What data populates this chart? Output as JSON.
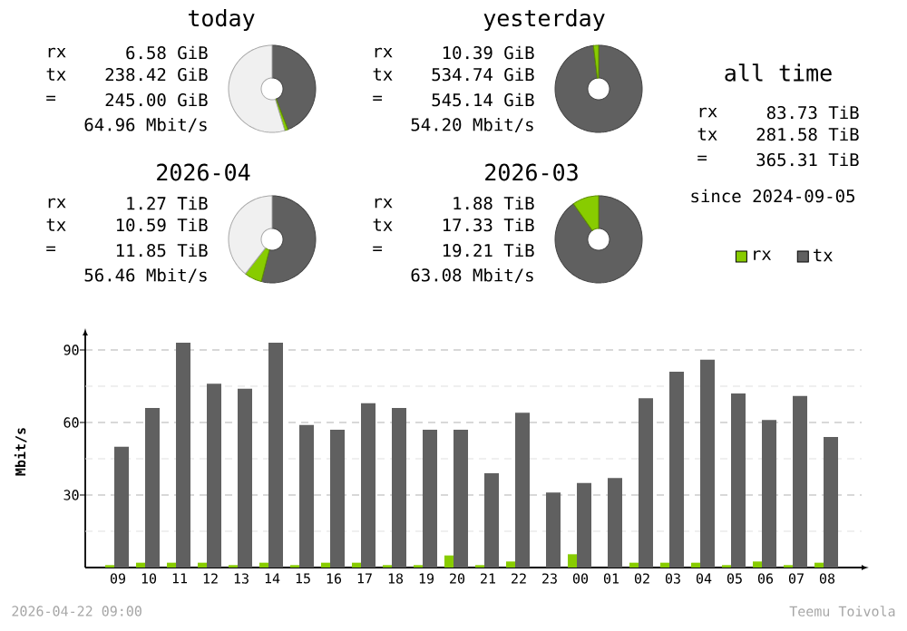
{
  "chart_data": [
    {
      "type": "donut",
      "title": "today",
      "categories": [
        null,
        null,
        null
      ],
      "values": [
        44.1,
        1.2,
        54.7
      ],
      "colors": [
        "#606060",
        "#88cc00",
        "#f0f0f0"
      ],
      "annotations": [
        "rx",
        "6.58 GiB",
        "tx",
        "238.42 GiB",
        "=",
        "245.00 GiB",
        "64.96 Mbit/s"
      ]
    },
    {
      "type": "donut",
      "title": "yesterday",
      "categories": [
        null,
        null
      ],
      "values": [
        98.1,
        1.9
      ],
      "colors": [
        "#606060",
        "#88cc00"
      ],
      "annotations": [
        "rx",
        "10.39 GiB",
        "tx",
        "534.74 GiB",
        "=",
        "545.14 GiB",
        "54.20 Mbit/s"
      ]
    },
    {
      "type": "other",
      "title": "all time",
      "annotations": [
        "rx",
        "83.73 TiB",
        "tx",
        "281.58 TiB",
        "=",
        "365.31 TiB",
        "since 2024-09-05"
      ]
    },
    {
      "type": "donut",
      "title": "2026-04",
      "categories": [
        null,
        null,
        null
      ],
      "values": [
        54.0,
        6.5,
        39.5
      ],
      "colors": [
        "#606060",
        "#88cc00",
        "#f0f0f0"
      ],
      "annotations": [
        "rx",
        "1.27 TiB",
        "tx",
        "10.59 TiB",
        "=",
        "11.85 TiB",
        "56.46 Mbit/s"
      ]
    },
    {
      "type": "donut",
      "title": "2026-03",
      "categories": [
        null,
        null
      ],
      "values": [
        90.2,
        9.8
      ],
      "colors": [
        "#606060",
        "#88cc00"
      ],
      "annotations": [
        "rx",
        "1.88 TiB",
        "tx",
        "17.33 TiB",
        "=",
        "19.21 TiB",
        "63.08 Mbit/s"
      ]
    },
    {
      "type": "bar",
      "ylabel": "Mbit/s",
      "categories": [
        "09",
        "10",
        "11",
        "12",
        "13",
        "14",
        "15",
        "16",
        "17",
        "18",
        "19",
        "20",
        "21",
        "22",
        "23",
        "00",
        "01",
        "02",
        "03",
        "04",
        "05",
        "06",
        "07",
        "08"
      ],
      "series": [
        {
          "name": "rx",
          "color": "#88cc00",
          "values": [
            1,
            2,
            2,
            2,
            1,
            2,
            1,
            2,
            2,
            1,
            1,
            5,
            1,
            2.5,
            0,
            5.5,
            0,
            2,
            2,
            2,
            1,
            2.5,
            1,
            2
          ]
        },
        {
          "name": "tx",
          "color": "#606060",
          "values": [
            50,
            66,
            93,
            76,
            74,
            93,
            59,
            57,
            68,
            66,
            57,
            57,
            39,
            64,
            31,
            35,
            37,
            70,
            81,
            86,
            72,
            61,
            71,
            54
          ]
        }
      ],
      "ylim": [
        0,
        96
      ],
      "yticks": [
        {
          "value": 15,
          "label": null
        },
        30,
        {
          "value": 45,
          "label": null
        },
        60,
        {
          "value": 75,
          "label": null
        },
        90
      ],
      "grid": "y",
      "legend": "top right",
      "annotations": [
        "2026-04-22 09:00",
        "Teemu Toivola"
      ]
    }
  ]
}
